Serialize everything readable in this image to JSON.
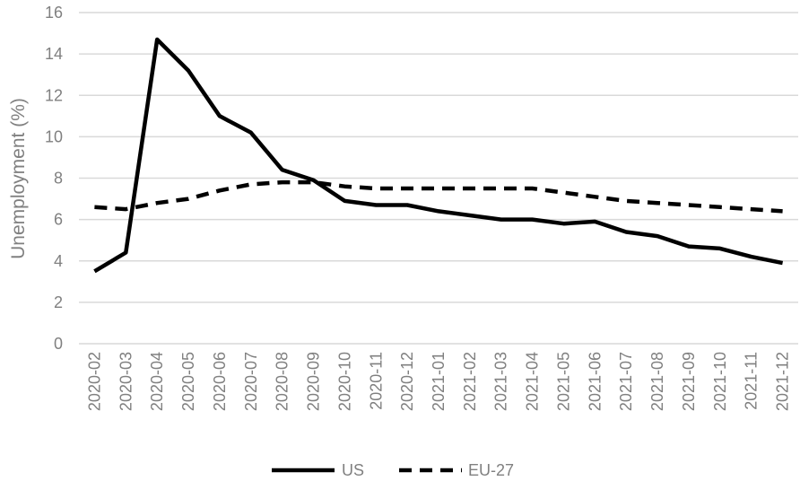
{
  "chart_data": {
    "type": "line",
    "categories": [
      "2020-02",
      "2020-03",
      "2020-04",
      "2020-05",
      "2020-06",
      "2020-07",
      "2020-08",
      "2020-09",
      "2020-10",
      "2020-11",
      "2020-12",
      "2021-01",
      "2021-02",
      "2021-03",
      "2021-04",
      "2021-05",
      "2021-06",
      "2021-07",
      "2021-08",
      "2021-09",
      "2021-10",
      "2021-11",
      "2021-12"
    ],
    "series": [
      {
        "name": "US",
        "style": "solid",
        "color": "#000000",
        "values": [
          3.5,
          4.4,
          14.7,
          13.2,
          11.0,
          10.2,
          8.4,
          7.9,
          6.9,
          6.7,
          6.7,
          6.4,
          6.2,
          6.0,
          6.0,
          5.8,
          5.9,
          5.4,
          5.2,
          4.7,
          4.6,
          4.2,
          3.9
        ]
      },
      {
        "name": "EU-27",
        "style": "dashed",
        "color": "#000000",
        "values": [
          6.6,
          6.5,
          6.8,
          7.0,
          7.4,
          7.7,
          7.8,
          7.8,
          7.6,
          7.5,
          7.5,
          7.5,
          7.5,
          7.5,
          7.5,
          7.3,
          7.1,
          6.9,
          6.8,
          6.7,
          6.6,
          6.5,
          6.4
        ]
      }
    ],
    "yticks": [
      "0",
      "2",
      "4",
      "6",
      "8",
      "10",
      "12",
      "14",
      "16"
    ],
    "ylim": [
      0,
      16
    ],
    "title": "",
    "xlabel": "",
    "ylabel": "Unemployment (%)",
    "grid": "horizontal",
    "legend": "bottom"
  }
}
